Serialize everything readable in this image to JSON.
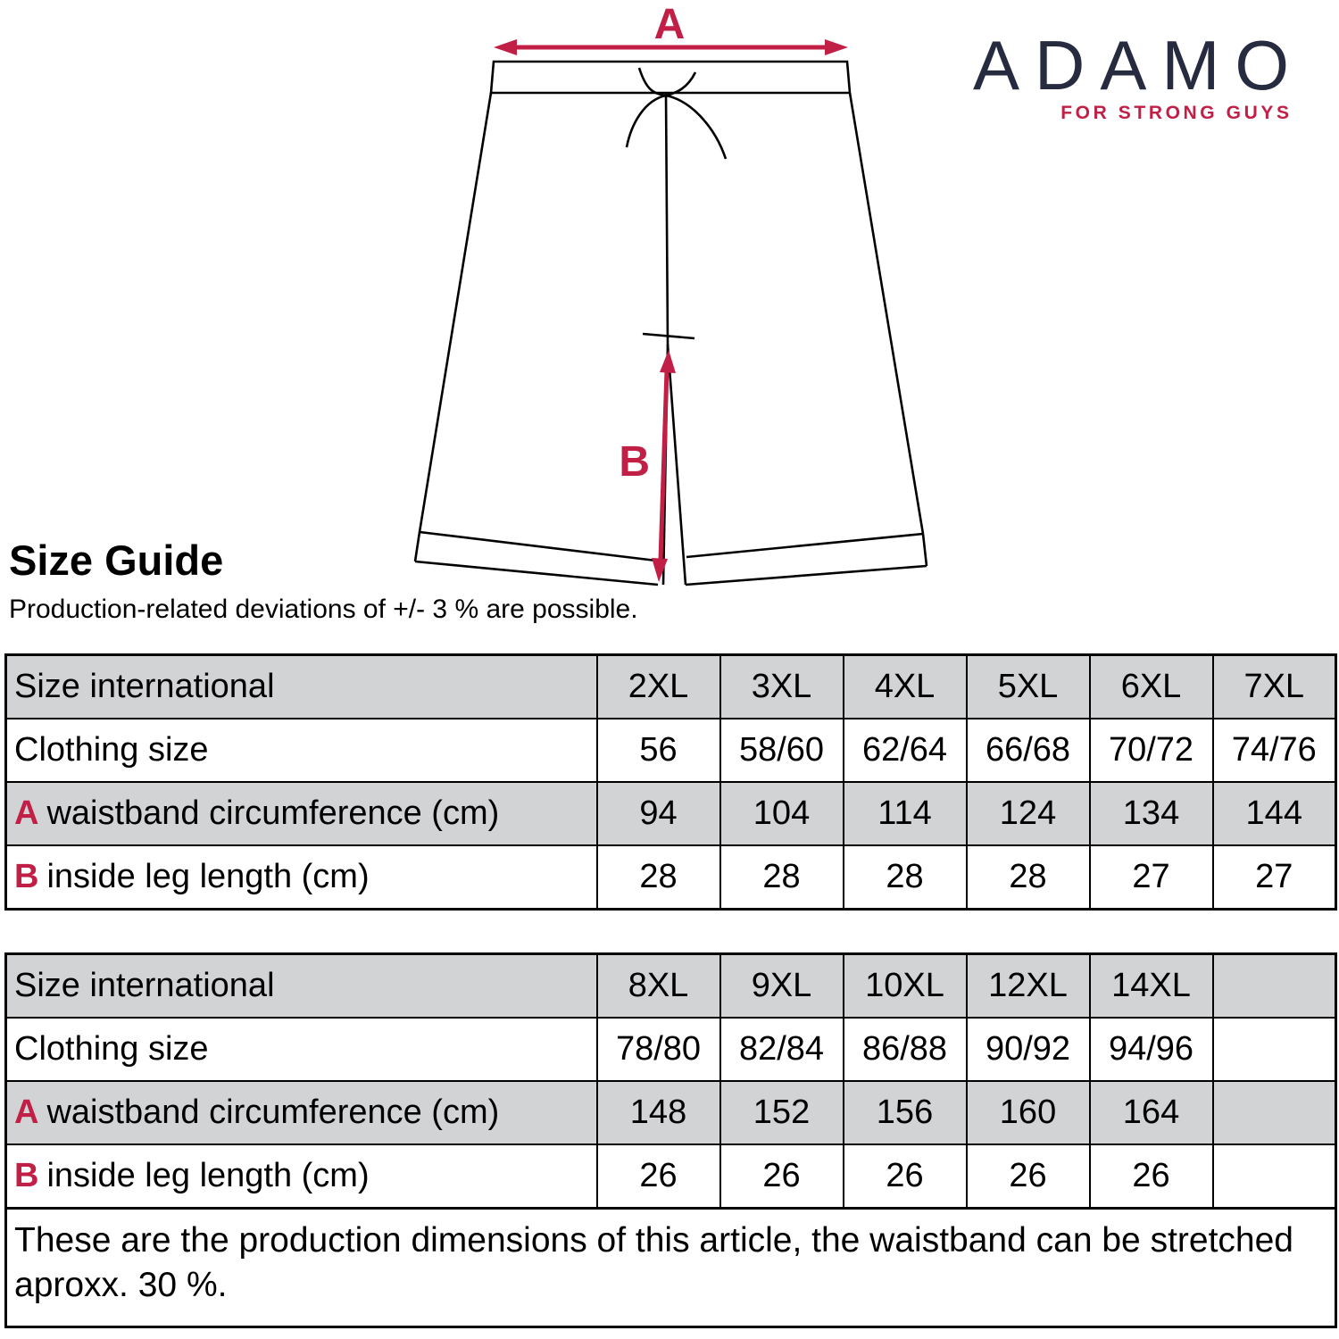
{
  "logo": {
    "brand": "ADAMO",
    "tagline": "FOR STRONG GUYS"
  },
  "diagram": {
    "label_a": "A",
    "label_b": "B"
  },
  "heading": {
    "title": "Size Guide",
    "subtitle": "Production-related deviations of +/- 3 % are possible."
  },
  "tables": [
    {
      "rows": [
        {
          "prefix": "",
          "label": "Size international",
          "shaded": true,
          "values": [
            "2XL",
            "3XL",
            "4XL",
            "5XL",
            "6XL",
            "7XL"
          ]
        },
        {
          "prefix": "",
          "label": "Clothing size",
          "shaded": false,
          "values": [
            "56",
            "58/60",
            "62/64",
            "66/68",
            "70/72",
            "74/76"
          ]
        },
        {
          "prefix": "A",
          "label": "waistband circumference (cm)",
          "shaded": true,
          "values": [
            "94",
            "104",
            "114",
            "124",
            "134",
            "144"
          ]
        },
        {
          "prefix": "B",
          "label": "inside leg length (cm)",
          "shaded": false,
          "values": [
            "28",
            "28",
            "28",
            "28",
            "27",
            "27"
          ]
        }
      ]
    },
    {
      "rows": [
        {
          "prefix": "",
          "label": "Size international",
          "shaded": true,
          "values": [
            "8XL",
            "9XL",
            "10XL",
            "12XL",
            "14XL",
            ""
          ]
        },
        {
          "prefix": "",
          "label": "Clothing size",
          "shaded": false,
          "values": [
            "78/80",
            "82/84",
            "86/88",
            "90/92",
            "94/96",
            ""
          ]
        },
        {
          "prefix": "A",
          "label": "waistband circumference (cm)",
          "shaded": true,
          "values": [
            "148",
            "152",
            "156",
            "160",
            "164",
            ""
          ]
        },
        {
          "prefix": "B",
          "label": "inside leg length (cm)",
          "shaded": false,
          "values": [
            "26",
            "26",
            "26",
            "26",
            "26",
            ""
          ]
        }
      ],
      "note": "These are the production dimensions of this article, the waistband can be stretched aproxx. 30 %."
    }
  ],
  "colors": {
    "accent_red": "#c11f45",
    "brand_navy": "#262b40",
    "row_shade": "#d2d3d5",
    "line_black": "#000000"
  }
}
